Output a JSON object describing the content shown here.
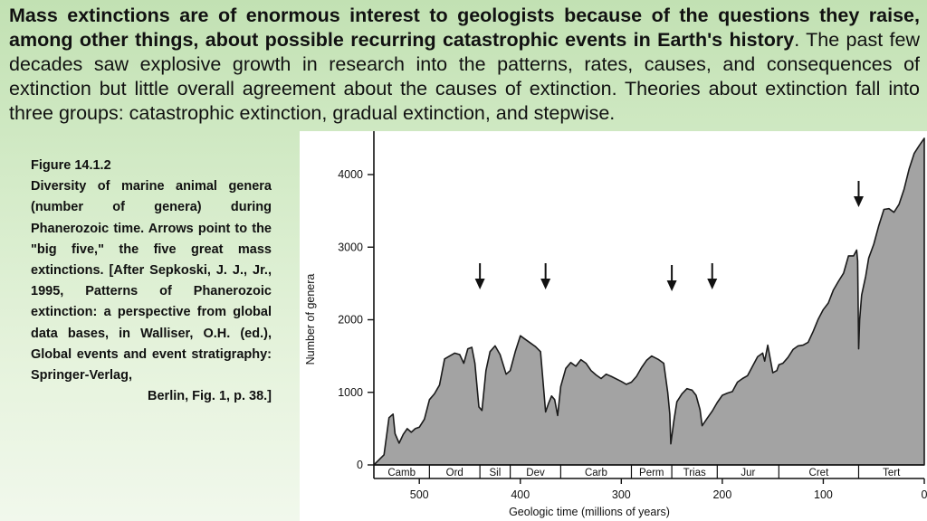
{
  "intro": {
    "bold_text": "Mass extinctions are of enormous interest to geologists because of the questions they raise, among other things, about possible recurring catastrophic events in Earth's history",
    "regular_text": ". The past few decades saw explosive growth in research into the patterns, rates, causes, and consequences of extinction but little overall agreement about the causes of extinction. Theories about extinction fall into three groups: catastrophic extinction, gradual extinction, and stepwise."
  },
  "caption": {
    "title": "Figure 14.1.2",
    "body": "Diversity of marine animal genera (number of genera) during Phanerozoic time. Arrows point to the \"big five,\" the five great mass extinctions. [After Sepkoski, J. J., Jr., 1995, Patterns of Phanerozoic extinction: a perspective from global data bases, in Walliser, O.H. (ed.), Global events and event stratigraphy: Springer-Verlag,",
    "last_line": "Berlin, Fig. 1, p. 38.]"
  },
  "chart_data": {
    "type": "area",
    "title": "",
    "xlabel": "Geologic time (millions of years)",
    "ylabel": "Number of genera",
    "xlim": [
      545,
      0
    ],
    "ylim": [
      0,
      4400
    ],
    "x_ticks": [
      500,
      400,
      300,
      200,
      100,
      0
    ],
    "y_ticks": [
      0,
      1000,
      2000,
      3000,
      4000
    ],
    "fill_color": "#a3a3a3",
    "periods": [
      {
        "name": "Camb",
        "start": 545,
        "end": 490
      },
      {
        "name": "Ord",
        "start": 490,
        "end": 440
      },
      {
        "name": "Sil",
        "start": 440,
        "end": 410
      },
      {
        "name": "Dev",
        "start": 410,
        "end": 360
      },
      {
        "name": "Carb",
        "start": 360,
        "end": 290
      },
      {
        "name": "Perm",
        "start": 290,
        "end": 250
      },
      {
        "name": "Trias",
        "start": 250,
        "end": 205
      },
      {
        "name": "Jur",
        "start": 205,
        "end": 144
      },
      {
        "name": "Cret",
        "start": 144,
        "end": 65
      },
      {
        "name": "Tert",
        "start": 65,
        "end": 0
      }
    ],
    "extinction_arrows": [
      440,
      375,
      250,
      210,
      65
    ],
    "series": [
      {
        "x": [
          545,
          535,
          530,
          526,
          524,
          520,
          516,
          512,
          508,
          504,
          500,
          495,
          490,
          485,
          480,
          475,
          470,
          465,
          460,
          456,
          452,
          448,
          445,
          441,
          438,
          434,
          430,
          425,
          420,
          414,
          410,
          405,
          400,
          395,
          390,
          385,
          380,
          375,
          372,
          369,
          366,
          363,
          360,
          355,
          350,
          345,
          340,
          335,
          330,
          325,
          320,
          315,
          310,
          300,
          295,
          290,
          285,
          280,
          275,
          270,
          263,
          258,
          254,
          252,
          251,
          248,
          245,
          240,
          235,
          230,
          226,
          222,
          220,
          215,
          210,
          205,
          200,
          195,
          190,
          185,
          180,
          175,
          170,
          165,
          160,
          158,
          155,
          150,
          146,
          144,
          140,
          135,
          130,
          125,
          120,
          115,
          110,
          105,
          100,
          95,
          90,
          85,
          80,
          75,
          70,
          67,
          66,
          65,
          64,
          62,
          58,
          55,
          50,
          45,
          40,
          35,
          30,
          25,
          20,
          15,
          10,
          5,
          0
        ],
        "y": [
          0,
          140,
          650,
          700,
          430,
          300,
          420,
          500,
          450,
          500,
          520,
          630,
          900,
          980,
          1100,
          1460,
          1500,
          1540,
          1520,
          1400,
          1600,
          1620,
          1400,
          800,
          750,
          1300,
          1560,
          1640,
          1520,
          1250,
          1300,
          1560,
          1780,
          1730,
          1680,
          1630,
          1560,
          730,
          850,
          950,
          900,
          680,
          1080,
          1330,
          1410,
          1360,
          1450,
          1400,
          1300,
          1240,
          1190,
          1250,
          1220,
          1150,
          1110,
          1140,
          1220,
          1340,
          1440,
          1500,
          1450,
          1400,
          1000,
          700,
          290,
          600,
          870,
          980,
          1050,
          1030,
          960,
          760,
          540,
          640,
          740,
          860,
          960,
          990,
          1010,
          1140,
          1190,
          1230,
          1360,
          1490,
          1540,
          1430,
          1650,
          1270,
          1300,
          1380,
          1400,
          1480,
          1590,
          1640,
          1650,
          1690,
          1840,
          2010,
          2140,
          2230,
          2410,
          2530,
          2640,
          2880,
          2880,
          2960,
          2810,
          1600,
          2000,
          2340,
          2600,
          2850,
          3040,
          3300,
          3520,
          3530,
          3480,
          3590,
          3800,
          4080,
          4290,
          4400,
          4500
        ]
      }
    ]
  }
}
